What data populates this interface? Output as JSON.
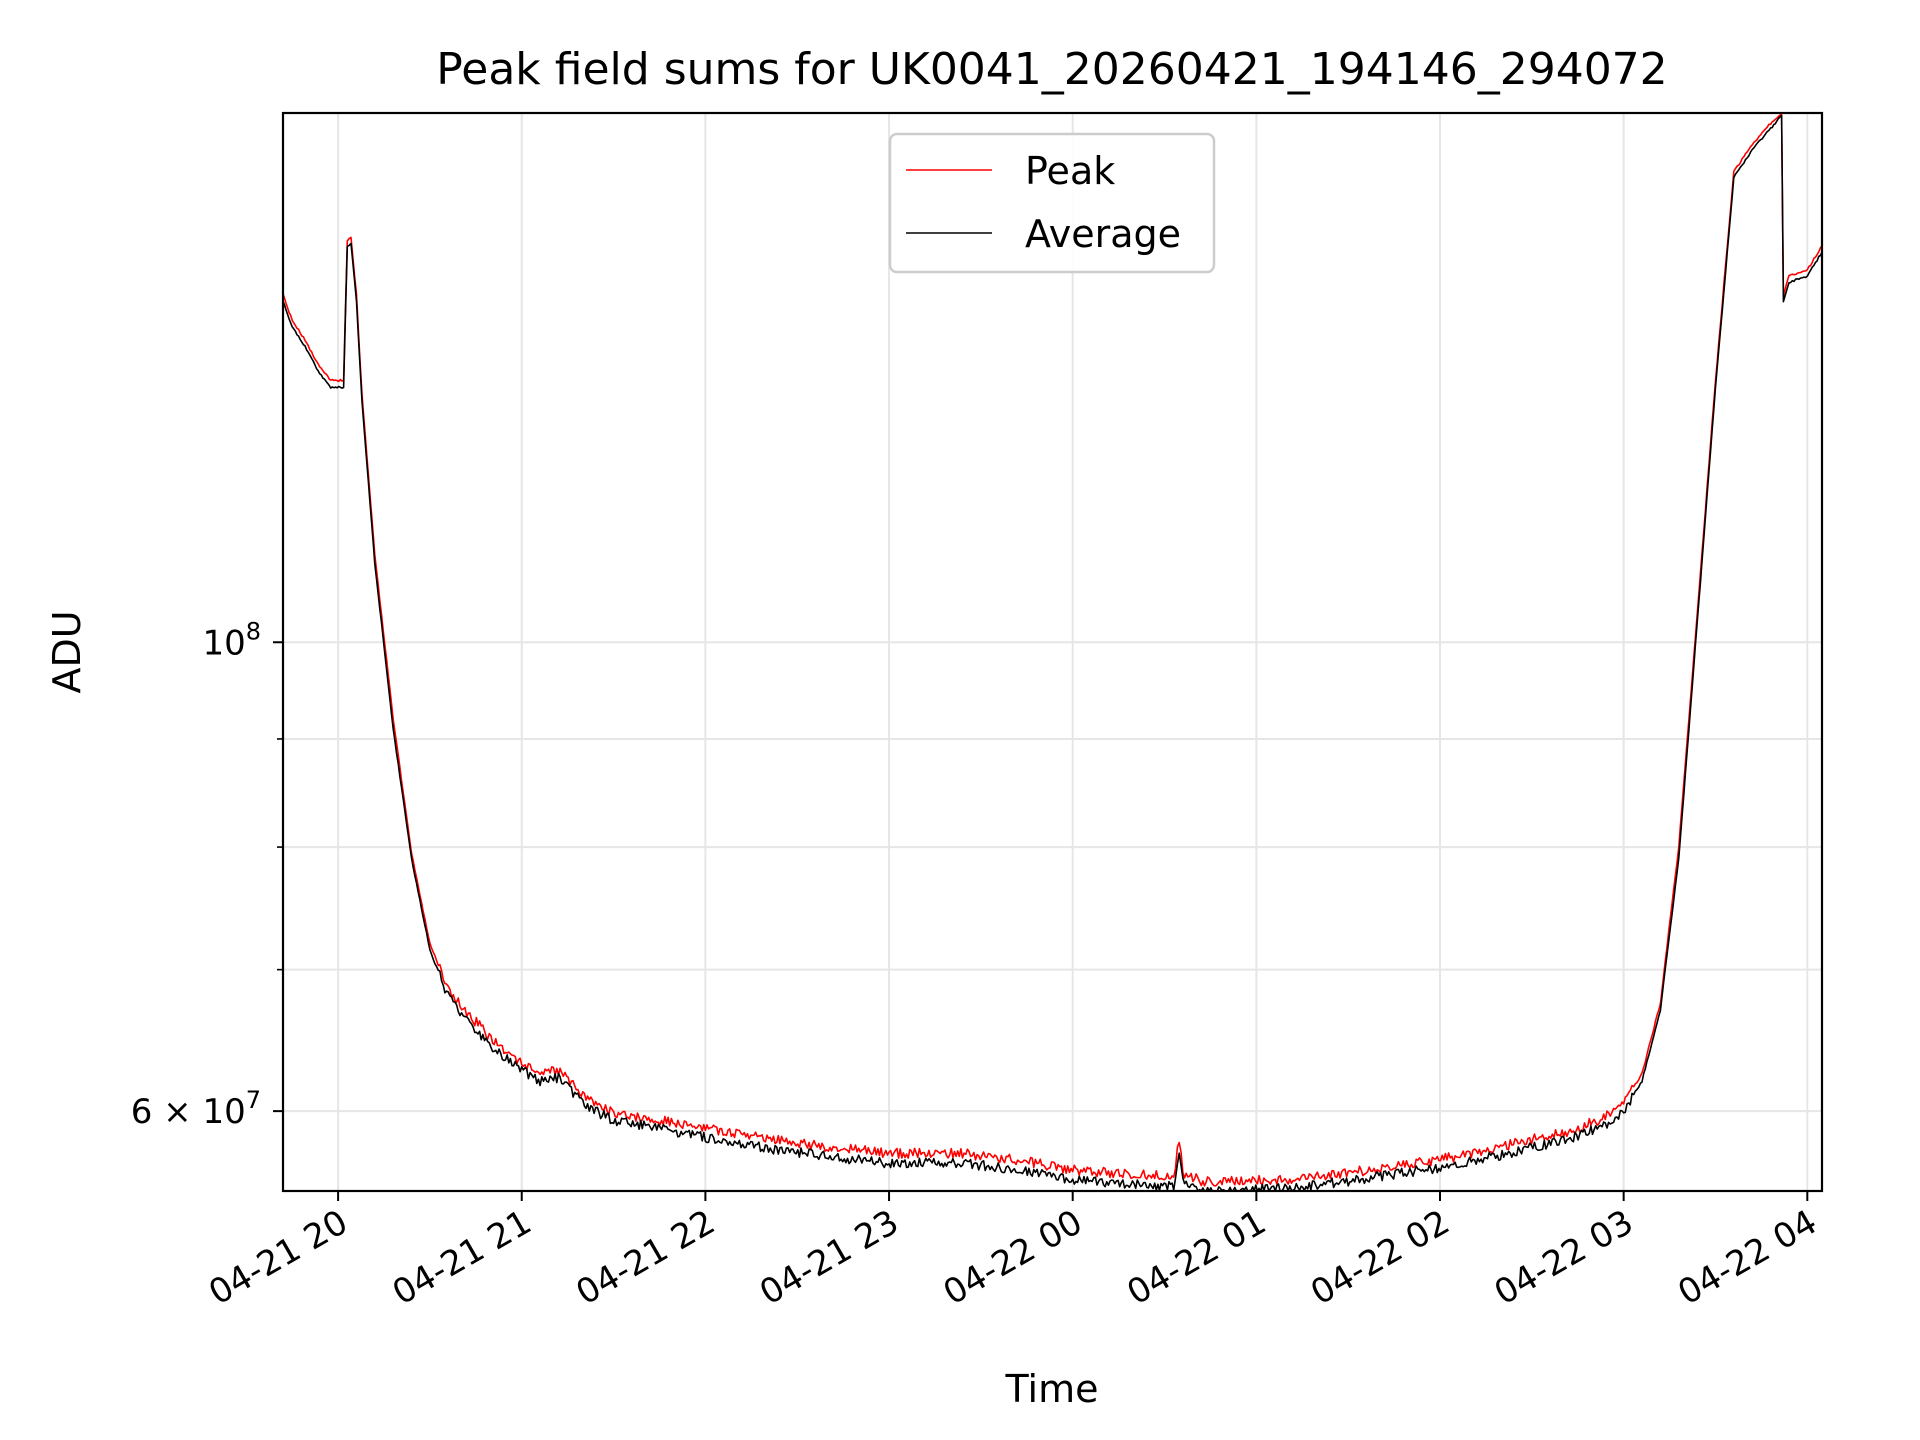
{
  "chart_data": {
    "type": "line",
    "title": "Peak field sums for UK0041_20260421_194146_294072",
    "xlabel": "Time",
    "ylabel": "ADU",
    "yscale": "log",
    "grid": true,
    "x_unit": "hours since 2026-04-21 00:00",
    "xlim": [
      19.7,
      28.08
    ],
    "ylim": [
      55000000,
      178000000
    ],
    "x_ticks": [
      {
        "value": 20,
        "label": "04-21 20"
      },
      {
        "value": 21,
        "label": "04-21 21"
      },
      {
        "value": 22,
        "label": "04-21 22"
      },
      {
        "value": 23,
        "label": "04-21 23"
      },
      {
        "value": 24,
        "label": "04-22 00"
      },
      {
        "value": 25,
        "label": "04-22 01"
      },
      {
        "value": 26,
        "label": "04-22 02"
      },
      {
        "value": 27,
        "label": "04-22 03"
      },
      {
        "value": 28,
        "label": "04-22 04"
      }
    ],
    "y_major_ticks": [
      {
        "value": 100000000,
        "base": "10",
        "exp": "8"
      },
      {
        "value": 60000000,
        "base": "6 × 10",
        "exp": "7"
      }
    ],
    "y_minor_ticks": [
      70000000,
      80000000,
      90000000
    ],
    "legend": {
      "location": "upper center",
      "entries": [
        "Peak",
        "Average"
      ]
    },
    "series": [
      {
        "name": "Peak",
        "color": "#ff0000",
        "x": [
          19.7,
          19.75,
          19.82,
          19.9,
          19.96,
          20.03,
          20.05,
          20.07,
          20.1,
          20.13,
          20.2,
          20.3,
          20.4,
          20.5,
          20.6,
          20.7,
          20.85,
          21.0,
          21.1,
          21.2,
          21.35,
          21.5,
          21.7,
          22.0,
          22.3,
          22.6,
          23.0,
          23.4,
          23.7,
          24.0,
          24.3,
          24.55,
          24.58,
          24.6,
          24.7,
          24.9,
          25.2,
          25.5,
          25.8,
          26.1,
          26.4,
          26.7,
          26.9,
          27.0,
          27.1,
          27.2,
          27.3,
          27.4,
          27.5,
          27.6,
          27.7,
          27.8,
          27.86,
          27.87,
          27.9,
          28.0,
          28.08
        ],
        "values": [
          146000000,
          142000000,
          139000000,
          135000000,
          133000000,
          133000000,
          155000000,
          155500000,
          146000000,
          131000000,
          110000000,
          92000000,
          79500000,
          72000000,
          68500000,
          66800000,
          64800000,
          63200000,
          62500000,
          62700000,
          60800000,
          59900000,
          59500000,
          58900000,
          58300000,
          57800000,
          57300000,
          57300000,
          56900000,
          56300000,
          56000000,
          55900000,
          58200000,
          56100000,
          55600000,
          55600000,
          55700000,
          56100000,
          56600000,
          57100000,
          57900000,
          58700000,
          59600000,
          60500000,
          62500000,
          67500000,
          80000000,
          103000000,
          133000000,
          167000000,
          172000000,
          176000000,
          178000000,
          146000000,
          149000000,
          150000000,
          154000000
        ]
      },
      {
        "name": "Average",
        "color": "#000000",
        "x": [
          19.7,
          19.75,
          19.82,
          19.9,
          19.96,
          20.03,
          20.05,
          20.07,
          20.1,
          20.13,
          20.2,
          20.3,
          20.4,
          20.5,
          20.6,
          20.7,
          20.85,
          21.0,
          21.1,
          21.2,
          21.35,
          21.5,
          21.7,
          22.0,
          22.3,
          22.6,
          23.0,
          23.4,
          23.7,
          24.0,
          24.3,
          24.55,
          24.58,
          24.6,
          24.7,
          24.9,
          25.2,
          25.5,
          25.8,
          26.1,
          26.4,
          26.7,
          26.9,
          27.0,
          27.1,
          27.2,
          27.3,
          27.4,
          27.5,
          27.6,
          27.7,
          27.8,
          27.86,
          27.87,
          27.9,
          28.0,
          28.08
        ],
        "values": [
          145000000,
          141000000,
          138000000,
          134000000,
          132000000,
          132000000,
          154000000,
          154500000,
          145000000,
          130000000,
          109000000,
          91000000,
          79000000,
          71500000,
          68000000,
          66200000,
          64200000,
          62700000,
          62000000,
          62200000,
          60300000,
          59400000,
          59000000,
          58300000,
          57700000,
          57200000,
          56700000,
          56700000,
          56300000,
          55700000,
          55400000,
          55300000,
          57200000,
          55500000,
          55100000,
          55100000,
          55200000,
          55600000,
          56100000,
          56600000,
          57400000,
          58200000,
          59100000,
          60000000,
          62000000,
          67000000,
          79000000,
          102000000,
          132000000,
          166000000,
          171000000,
          175000000,
          177500000,
          145000000,
          148000000,
          149000000,
          153000000
        ]
      }
    ]
  }
}
